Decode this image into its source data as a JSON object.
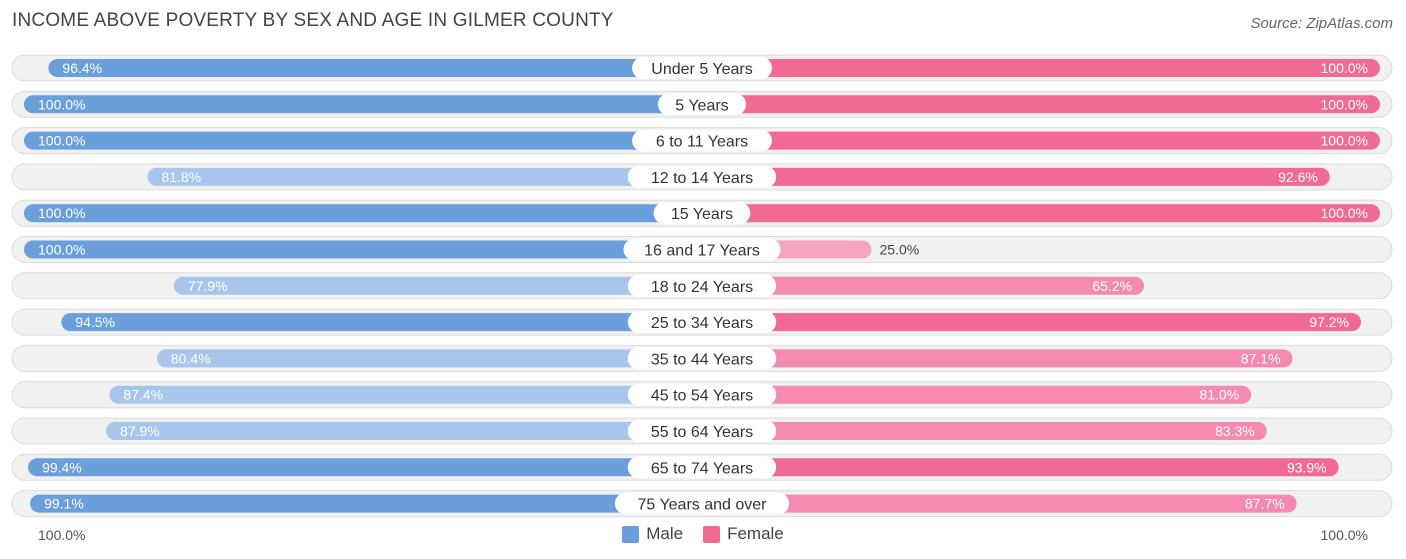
{
  "header": {
    "title": "INCOME ABOVE POVERTY BY SEX AND AGE IN GILMER COUNTY",
    "source": "Source: ZipAtlas.com"
  },
  "colors": {
    "male_strong": "#6a9fdc",
    "male_light": "#a8c6ec",
    "female_strong": "#f06a94",
    "female_light": "#f6a6c0"
  },
  "axis": {
    "left_label": "100.0%",
    "right_label": "100.0%"
  },
  "legend": {
    "male": "Male",
    "female": "Female"
  },
  "chart_data": {
    "type": "bar",
    "title": "INCOME ABOVE POVERTY BY SEX AND AGE IN GILMER COUNTY",
    "categories": [
      "Under 5 Years",
      "5 Years",
      "6 to 11 Years",
      "12 to 14 Years",
      "15 Years",
      "16 and 17 Years",
      "18 to 24 Years",
      "25 to 34 Years",
      "35 to 44 Years",
      "45 to 54 Years",
      "55 to 64 Years",
      "65 to 74 Years",
      "75 Years and over"
    ],
    "series": [
      {
        "name": "Male",
        "values": [
          96.4,
          100.0,
          100.0,
          81.8,
          100.0,
          100.0,
          77.9,
          94.5,
          80.4,
          87.4,
          87.9,
          99.4,
          99.1
        ],
        "labels": [
          "96.4%",
          "100.0%",
          "100.0%",
          "81.8%",
          "100.0%",
          "100.0%",
          "77.9%",
          "94.5%",
          "80.4%",
          "87.4%",
          "87.9%",
          "99.4%",
          "99.1%"
        ]
      },
      {
        "name": "Female",
        "values": [
          100.0,
          100.0,
          100.0,
          92.6,
          100.0,
          25.0,
          65.2,
          97.2,
          87.1,
          81.0,
          83.3,
          93.9,
          87.7
        ],
        "labels": [
          "100.0%",
          "100.0%",
          "100.0%",
          "92.6%",
          "100.0%",
          "25.0%",
          "65.2%",
          "97.2%",
          "87.1%",
          "81.0%",
          "83.3%",
          "93.9%",
          "87.7%"
        ]
      }
    ],
    "xlim": [
      0,
      100
    ],
    "layout": "diverging horizontal bars (male left, female right)"
  }
}
